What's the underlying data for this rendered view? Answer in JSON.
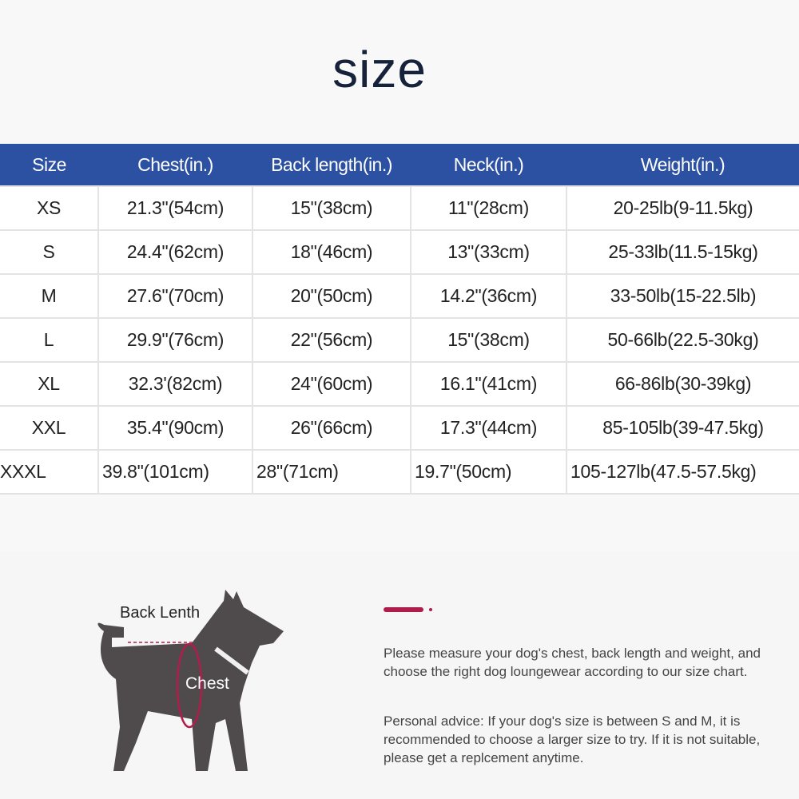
{
  "title": "size",
  "table": {
    "headers": [
      "Size",
      "Chest(in.)",
      "Back length(in.)",
      "Neck(in.)",
      "Weight(in.)"
    ],
    "rows": [
      [
        "XS",
        "21.3\"(54cm)",
        "15\"(38cm)",
        "11\"(28cm)",
        "20-25lb(9-11.5kg)"
      ],
      [
        "S",
        "24.4\"(62cm)",
        "18\"(46cm)",
        "13\"(33cm)",
        "25-33lb(11.5-15kg)"
      ],
      [
        "M",
        "27.6\"(70cm)",
        "20\"(50cm)",
        "14.2\"(36cm)",
        "33-50lb(15-22.5lb)"
      ],
      [
        "L",
        "29.9\"(76cm)",
        "22\"(56cm)",
        "15\"(38cm)",
        "50-66lb(22.5-30kg)"
      ],
      [
        "XL",
        "32.3'(82cm)",
        "24\"(60cm)",
        "16.1\"(41cm)",
        "66-86lb(30-39kg)"
      ],
      [
        "XXL",
        "35.4\"(90cm)",
        "26\"(66cm)",
        "17.3\"(44cm)",
        "85-105lb(39-47.5kg)"
      ],
      [
        "XXXL",
        "39.8\"(101cm)",
        "28\"(71cm)",
        "19.7\"(50cm)",
        "105-127lb(47.5-57.5kg)"
      ]
    ],
    "header_color": "#2c50a2"
  },
  "diagram": {
    "back_label": "Back Lenth",
    "chest_label": "Chest",
    "dog_color": "#4f4b4d",
    "accent_color": "#b11d4a"
  },
  "instructions": {
    "paragraph1": "Please measure your dog's chest, back length and weight, and choose the right dog loungewear according to our size chart.",
    "paragraph2": "Personal advice: If your dog's size is between S and M, it is recommended to choose a larger size to try. If it is not suitable, please get a replcement anytime."
  }
}
